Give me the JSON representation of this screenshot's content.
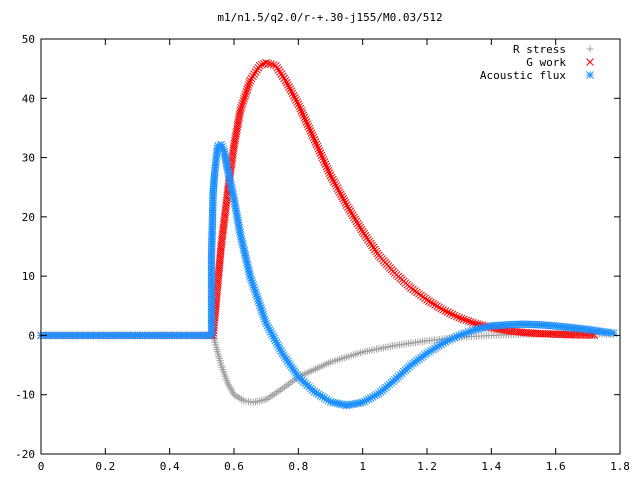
{
  "chart_data": {
    "type": "scatter",
    "title": "m1/n1.5/q2.0/r-+.30-j155/M0.03/512",
    "xlabel": "",
    "ylabel": "",
    "xlim": [
      0,
      1.8
    ],
    "ylim": [
      -20,
      50
    ],
    "x_ticks": [
      0,
      0.2,
      0.4,
      0.6,
      0.8,
      1,
      1.2,
      1.4,
      1.6,
      1.8
    ],
    "y_ticks": [
      -20,
      -10,
      0,
      10,
      20,
      30,
      40,
      50
    ],
    "x_tick_labels": [
      "0",
      "0.2",
      "0.4",
      "0.6",
      "0.8",
      "1",
      "1.2",
      "1.4",
      "1.6",
      "1.8"
    ],
    "y_tick_labels": [
      "-20",
      "-10",
      "0",
      "10",
      "20",
      "30",
      "40",
      "50"
    ],
    "grid": false,
    "legend_position": "top-right",
    "series": [
      {
        "name": "R stress",
        "marker": "plus",
        "color": "#a0a0a0",
        "points": [
          [
            0.0,
            0
          ],
          [
            0.1,
            0
          ],
          [
            0.2,
            0
          ],
          [
            0.3,
            0
          ],
          [
            0.4,
            0
          ],
          [
            0.5,
            0
          ],
          [
            0.535,
            0
          ],
          [
            0.545,
            -2
          ],
          [
            0.56,
            -5
          ],
          [
            0.58,
            -8
          ],
          [
            0.6,
            -10
          ],
          [
            0.63,
            -11
          ],
          [
            0.66,
            -11.3
          ],
          [
            0.7,
            -10.8
          ],
          [
            0.75,
            -9
          ],
          [
            0.8,
            -7
          ],
          [
            0.9,
            -4.5
          ],
          [
            1.0,
            -2.8
          ],
          [
            1.1,
            -1.7
          ],
          [
            1.2,
            -0.9
          ],
          [
            1.3,
            -0.3
          ],
          [
            1.4,
            0
          ],
          [
            1.5,
            0.2
          ],
          [
            1.6,
            0.3
          ],
          [
            1.7,
            0.3
          ],
          [
            1.78,
            0.2
          ]
        ]
      },
      {
        "name": "G work",
        "marker": "cross",
        "color": "#ff0000",
        "points": [
          [
            0.0,
            0
          ],
          [
            0.1,
            0
          ],
          [
            0.2,
            0
          ],
          [
            0.3,
            0
          ],
          [
            0.4,
            0
          ],
          [
            0.5,
            0
          ],
          [
            0.535,
            0
          ],
          [
            0.54,
            3
          ],
          [
            0.55,
            9
          ],
          [
            0.56,
            15
          ],
          [
            0.58,
            24
          ],
          [
            0.6,
            32
          ],
          [
            0.62,
            38
          ],
          [
            0.65,
            43
          ],
          [
            0.68,
            45.5
          ],
          [
            0.7,
            46
          ],
          [
            0.73,
            45.5
          ],
          [
            0.76,
            43
          ],
          [
            0.8,
            39
          ],
          [
            0.85,
            33
          ],
          [
            0.9,
            27
          ],
          [
            0.95,
            22
          ],
          [
            1.0,
            17.5
          ],
          [
            1.05,
            13.5
          ],
          [
            1.1,
            10.5
          ],
          [
            1.15,
            8
          ],
          [
            1.2,
            6
          ],
          [
            1.25,
            4.3
          ],
          [
            1.3,
            3
          ],
          [
            1.35,
            2
          ],
          [
            1.4,
            1.3
          ],
          [
            1.45,
            0.8
          ],
          [
            1.5,
            0.5
          ],
          [
            1.55,
            0.3
          ],
          [
            1.6,
            0.2
          ],
          [
            1.65,
            0.1
          ],
          [
            1.72,
            0.05
          ]
        ]
      },
      {
        "name": "Acoustic flux",
        "marker": "star",
        "color": "#1e90ff",
        "points": [
          [
            0.0,
            0
          ],
          [
            0.1,
            0
          ],
          [
            0.2,
            0
          ],
          [
            0.3,
            0
          ],
          [
            0.4,
            0
          ],
          [
            0.5,
            0
          ],
          [
            0.53,
            0
          ],
          [
            0.53,
            13
          ],
          [
            0.535,
            24
          ],
          [
            0.54,
            27.5
          ],
          [
            0.545,
            30
          ],
          [
            0.55,
            32
          ],
          [
            0.56,
            32.2
          ],
          [
            0.57,
            31
          ],
          [
            0.58,
            28
          ],
          [
            0.6,
            23
          ],
          [
            0.62,
            17
          ],
          [
            0.65,
            10
          ],
          [
            0.7,
            2
          ],
          [
            0.75,
            -3
          ],
          [
            0.8,
            -7
          ],
          [
            0.85,
            -9.5
          ],
          [
            0.9,
            -11.2
          ],
          [
            0.95,
            -11.8
          ],
          [
            1.0,
            -11.3
          ],
          [
            1.05,
            -9.8
          ],
          [
            1.1,
            -7.5
          ],
          [
            1.15,
            -5
          ],
          [
            1.2,
            -3
          ],
          [
            1.25,
            -1.3
          ],
          [
            1.3,
            0
          ],
          [
            1.35,
            1
          ],
          [
            1.4,
            1.6
          ],
          [
            1.45,
            1.8
          ],
          [
            1.5,
            1.9
          ],
          [
            1.55,
            1.8
          ],
          [
            1.6,
            1.6
          ],
          [
            1.65,
            1.3
          ],
          [
            1.7,
            1
          ],
          [
            1.75,
            0.6
          ],
          [
            1.78,
            0.4
          ]
        ]
      }
    ]
  }
}
